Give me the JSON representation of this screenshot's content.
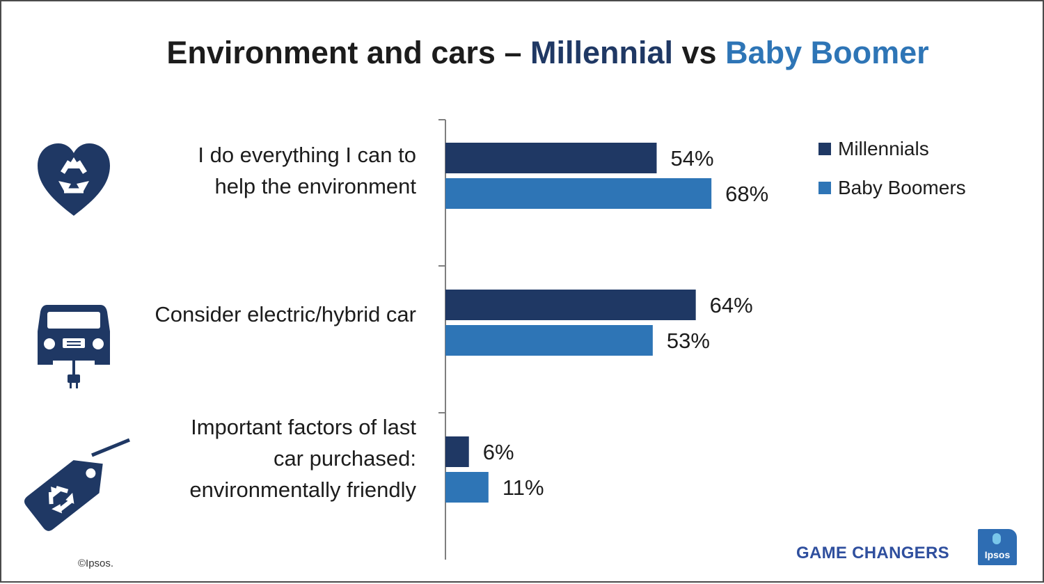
{
  "chart_data": {
    "type": "bar",
    "orientation": "horizontal",
    "title_parts": [
      "Environment and cars – ",
      "Millennial",
      " vs ",
      "Baby Boomer"
    ],
    "categories": [
      "I do everything I can to\nhelp the environment",
      "Consider electric/hybrid car",
      "Important factors of last\ncar purchased:\nenvironmentally friendly"
    ],
    "series": [
      {
        "name": "Millennials",
        "color": "#1f3864",
        "values": [
          54,
          64,
          6
        ]
      },
      {
        "name": "Baby Boomers",
        "color": "#2e75b6",
        "values": [
          68,
          53,
          11
        ]
      }
    ],
    "value_suffix": "%",
    "xlim": [
      0,
      100
    ],
    "legend_position": "top-right",
    "grid": false
  },
  "icons": [
    "heart-recycle-icon",
    "electric-car-icon",
    "recycle-tag-icon"
  ],
  "footer": {
    "copyright": "©Ipsos.",
    "brand": "GAME CHANGERS",
    "logo_text": "Ipsos"
  }
}
